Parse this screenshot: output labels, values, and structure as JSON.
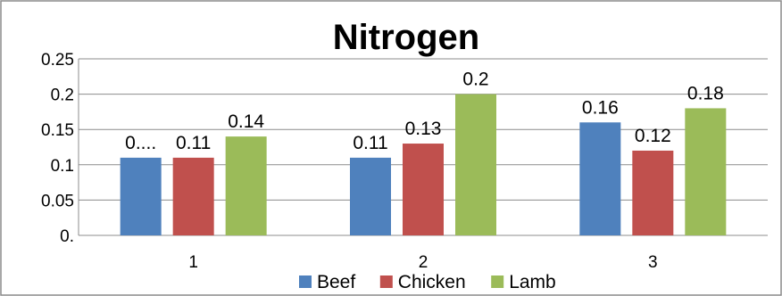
{
  "chart_data": {
    "type": "bar",
    "title": "Nitrogen",
    "categories": [
      "1",
      "2",
      "3"
    ],
    "series": [
      {
        "name": "Beef",
        "values": [
          0.11,
          0.11,
          0.16
        ],
        "labels": [
          "0....",
          "0.11",
          "0.16"
        ],
        "color": "#4F81BD"
      },
      {
        "name": "Chicken",
        "values": [
          0.11,
          0.13,
          0.12
        ],
        "labels": [
          "0.11",
          "0.13",
          "0.12"
        ],
        "color": "#C0504D"
      },
      {
        "name": "Lamb",
        "values": [
          0.14,
          0.2,
          0.18
        ],
        "labels": [
          "0.14",
          "0.2",
          "0.18"
        ],
        "color": "#9BBB59"
      }
    ],
    "ylim": [
      0,
      0.25
    ],
    "yticks": [
      0,
      0.05,
      0.1,
      0.15,
      0.2,
      0.25
    ],
    "ytick_labels": [
      "0.",
      "0.05",
      "0.1",
      "0.15",
      "0.2",
      "0.25"
    ],
    "grid": true,
    "legend": "bottom",
    "xlabel": "",
    "ylabel": ""
  }
}
